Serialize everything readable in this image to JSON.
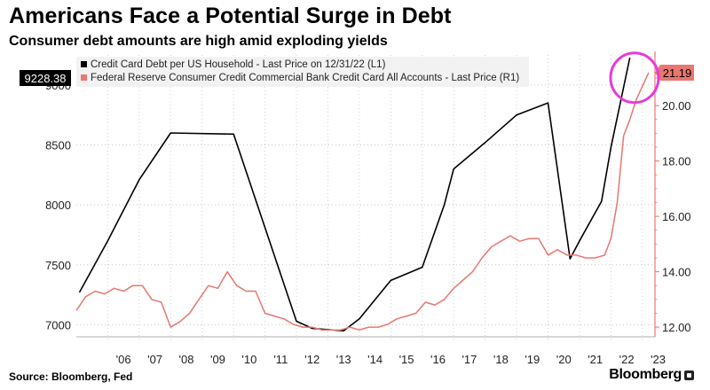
{
  "title": "Americans Face a Potential Surge in Debt",
  "subtitle": "Consumer debt amounts are high amid exploding yields",
  "source": "Source: Bloomberg, Fed",
  "brand": "Bloomberg",
  "brand_icon": "bloomberg-logo-icon",
  "chart_data": {
    "type": "line",
    "x_tick_labels": [
      "'06",
      "'07",
      "'08",
      "'09",
      "'10",
      "'11",
      "'12",
      "'13",
      "'14",
      "'15",
      "'16",
      "'17",
      "'18",
      "'19",
      "'20",
      "'21",
      "'22",
      "'23"
    ],
    "x_range": [
      2005.0,
      2023.4
    ],
    "y_left_range": [
      6900,
      9250
    ],
    "y_left_ticks": [
      7000,
      7500,
      8000,
      8500,
      9000
    ],
    "y_right_range": [
      11.65,
      21.83
    ],
    "y_right_ticks": [
      "12.00",
      "14.00",
      "16.00",
      "18.00",
      "20.00"
    ],
    "legend_position": "top-left",
    "series": [
      {
        "name": "Credit Card Debt per US Household - Last Price on 12/31/22 (L1)",
        "axis": "left",
        "color": "#000000",
        "last_value": "9228.38",
        "x": [
          2005.1,
          2006.0,
          2007.0,
          2008.0,
          2010.0,
          2012.0,
          2012.5,
          2013.5,
          2014.0,
          2015.0,
          2016.0,
          2016.7,
          2017.0,
          2018.0,
          2019.0,
          2020.0,
          2020.7,
          2021.0,
          2021.7,
          2022.0,
          2022.6
        ],
        "y": [
          7270,
          7700,
          8210,
          8600,
          8590,
          7030,
          6970,
          6950,
          7050,
          7370,
          7480,
          8000,
          8300,
          8520,
          8750,
          8850,
          7550,
          7700,
          8030,
          8480,
          9228
        ]
      },
      {
        "name": "Federal Reserve Consumer Credit Commercial Bank Credit Card All Accounts - Last Price (R1)",
        "axis": "right",
        "color": "#e8776f",
        "last_value": "21.19",
        "x": [
          2005.0,
          2005.3,
          2005.6,
          2005.9,
          2006.2,
          2006.5,
          2006.8,
          2007.1,
          2007.4,
          2007.7,
          2008.0,
          2008.3,
          2008.6,
          2008.9,
          2009.2,
          2009.5,
          2009.8,
          2010.1,
          2010.4,
          2010.7,
          2011.0,
          2011.3,
          2011.6,
          2011.9,
          2012.2,
          2012.5,
          2012.8,
          2013.1,
          2013.4,
          2013.7,
          2014.0,
          2014.3,
          2014.6,
          2014.9,
          2015.2,
          2015.5,
          2015.8,
          2016.1,
          2016.4,
          2016.7,
          2017.0,
          2017.3,
          2017.6,
          2017.9,
          2018.2,
          2018.5,
          2018.8,
          2019.1,
          2019.4,
          2019.7,
          2020.0,
          2020.3,
          2020.6,
          2020.9,
          2021.2,
          2021.5,
          2021.8,
          2022.0,
          2022.2,
          2022.4,
          2022.6,
          2022.8,
          2023.0,
          2023.2
        ],
        "y": [
          12.6,
          13.1,
          13.3,
          13.2,
          13.4,
          13.3,
          13.5,
          13.5,
          13.0,
          12.9,
          12.0,
          12.2,
          12.5,
          13.0,
          13.5,
          13.4,
          14.0,
          13.5,
          13.3,
          13.3,
          12.5,
          12.4,
          12.3,
          12.1,
          12.0,
          12.0,
          11.9,
          11.9,
          11.9,
          12.0,
          11.9,
          12.0,
          12.0,
          12.1,
          12.3,
          12.4,
          12.5,
          12.9,
          12.8,
          13.0,
          13.4,
          13.7,
          14.0,
          14.5,
          14.9,
          15.1,
          15.3,
          15.1,
          15.2,
          15.2,
          14.6,
          14.8,
          14.6,
          14.6,
          14.5,
          14.5,
          14.6,
          15.2,
          16.5,
          18.9,
          19.5,
          20.2,
          20.7,
          21.19
        ]
      }
    ],
    "annotation": "magenta circle highlighting recent peak"
  }
}
